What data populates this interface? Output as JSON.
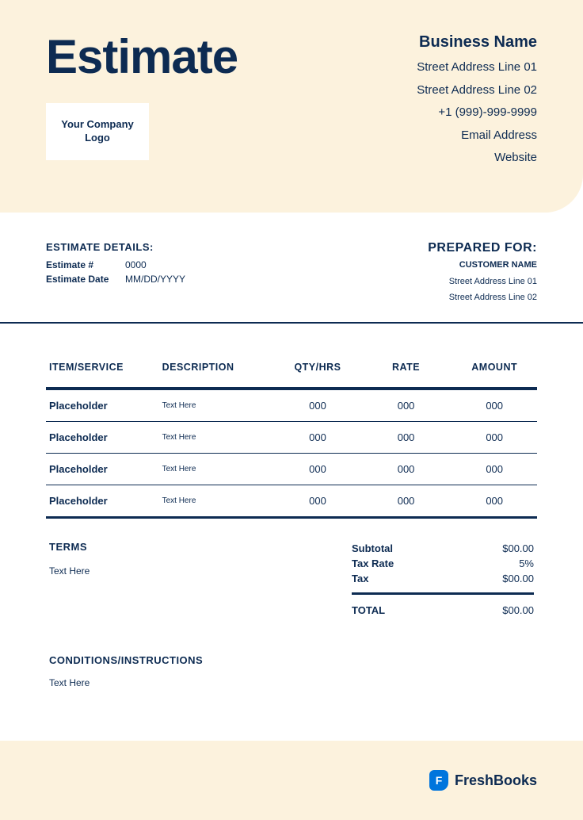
{
  "colors": {
    "primary": "#0d2b52",
    "banner_bg": "#fcf2dd",
    "page_bg": "#ffffff",
    "accent": "#0075dd"
  },
  "doc_title": "Estimate",
  "logo_placeholder": "Your Company Logo",
  "business": {
    "name": "Business Name",
    "address1": "Street Address Line 01",
    "address2": "Street Address Line 02",
    "phone": "+1 (999)-999-9999",
    "email": "Email Address",
    "website": "Website"
  },
  "estimate_details": {
    "heading": "ESTIMATE DETAILS:",
    "number_label": "Estimate #",
    "number_value": "0000",
    "date_label": "Estimate Date",
    "date_value": "MM/DD/YYYY"
  },
  "prepared_for": {
    "heading": "PREPARED FOR:",
    "customer": "CUSTOMER NAME",
    "address1": "Street Address Line 01",
    "address2": "Street Address Line 02"
  },
  "table": {
    "columns": [
      "ITEM/SERVICE",
      "DESCRIPTION",
      "QTY/HRS",
      "RATE",
      "AMOUNT"
    ],
    "rows": [
      {
        "item": "Placeholder",
        "desc": "Text Here",
        "qty": "000",
        "rate": "000",
        "amount": "000"
      },
      {
        "item": "Placeholder",
        "desc": "Text Here",
        "qty": "000",
        "rate": "000",
        "amount": "000"
      },
      {
        "item": "Placeholder",
        "desc": "Text Here",
        "qty": "000",
        "rate": "000",
        "amount": "000"
      },
      {
        "item": "Placeholder",
        "desc": "Text Here",
        "qty": "000",
        "rate": "000",
        "amount": "000"
      }
    ]
  },
  "terms": {
    "heading": "TERMS",
    "text": "Text Here"
  },
  "totals": {
    "subtotal_label": "Subtotal",
    "subtotal_value": "$00.00",
    "taxrate_label": "Tax Rate",
    "taxrate_value": "5%",
    "tax_label": "Tax",
    "tax_value": "$00.00",
    "total_label": "TOTAL",
    "total_value": "$00.00"
  },
  "conditions": {
    "heading": "CONDITIONS/INSTRUCTIONS",
    "text": "Text Here"
  },
  "footer": {
    "brand_letter": "F",
    "brand_name": "FreshBooks"
  }
}
